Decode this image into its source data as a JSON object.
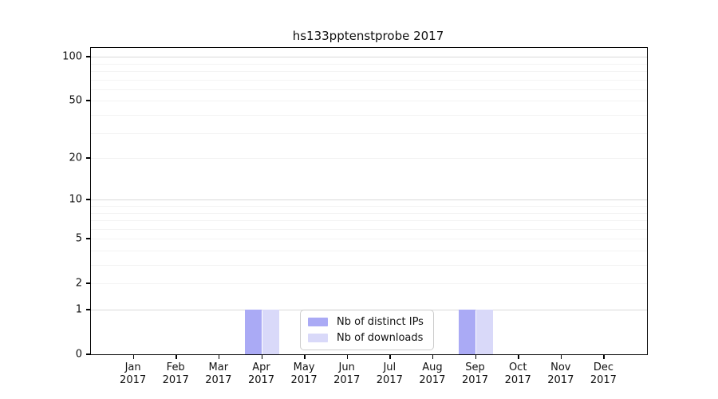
{
  "chart_data": {
    "type": "bar",
    "title": "hs133pptenstprobe 2017",
    "categories": [
      "Jan",
      "Feb",
      "Mar",
      "Apr",
      "May",
      "Jun",
      "Jul",
      "Aug",
      "Sep",
      "Oct",
      "Nov",
      "Dec"
    ],
    "category_year": "2017",
    "series": [
      {
        "name": "Nb of distinct IPs",
        "color": "#aaaaf5",
        "values": [
          0,
          0,
          0,
          1,
          0,
          0,
          0,
          0,
          1,
          0,
          0,
          0
        ]
      },
      {
        "name": "Nb of downloads",
        "color": "#d9d9f9",
        "values": [
          0,
          0,
          0,
          1,
          0,
          0,
          0,
          0,
          1,
          0,
          0,
          0
        ]
      }
    ],
    "xlabel": "",
    "ylabel": "",
    "y_scale": "log1p",
    "ylim": [
      0,
      115
    ],
    "y_ticks_labeled": [
      0,
      1,
      2,
      5,
      10,
      20,
      50,
      100
    ],
    "y_major_gridlines": [
      1,
      10,
      100
    ],
    "y_minor_gridlines": [
      2,
      3,
      4,
      5,
      6,
      7,
      8,
      9,
      20,
      30,
      40,
      50,
      60,
      70,
      80,
      90
    ],
    "grid": "horizontal",
    "legend": {
      "position": "lower center"
    }
  },
  "style": {
    "bar_color_primary": "#aaaaf5",
    "bar_color_secondary": "#d9d9f9",
    "grid_major_color": "#d9d9d9",
    "grid_minor_color": "#f3f3f3",
    "axis_color": "#000000",
    "text_color": "#111111",
    "legend_border_color": "#cccccc"
  }
}
